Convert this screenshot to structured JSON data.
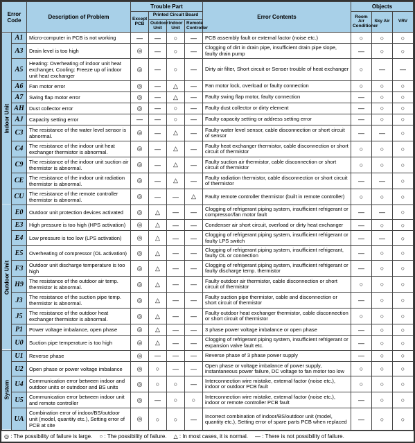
{
  "legend": {
    "large": "◎  : The possibility of failure is large.",
    "possible": "○  : The possibility of failure.",
    "normal": "△ : In most cases, it is normal.",
    "none": "—  : There is not possibility of failure."
  },
  "headers": {
    "errorCode": "Error Code",
    "descProblem": "Description of Problem",
    "troublePart": "Trouble Part",
    "exceptPCB": "Except PCB",
    "pcb": "Printed Circuit Board",
    "outdoorUnit": "Outdoor Unit",
    "indoorUnit": "Indoor Unit",
    "remoteController": "Remote Controller",
    "errorContents": "Error Contents",
    "objects": "Objects",
    "roomAC": "Room Air Conditioner",
    "skyAir": "Sky Air",
    "vrv": "VRV"
  },
  "groups": [
    {
      "label": "Indoor Unit",
      "rows": [
        {
          "code": "A1",
          "desc": "Micro-computer in PCB is not working",
          "s": [
            "—",
            "—",
            "○",
            "—"
          ],
          "contents": "PCB assembly fault or external factor (noise etc.)",
          "o": [
            "○",
            "○",
            "○"
          ]
        },
        {
          "code": "A3",
          "desc": "Drain level is too high",
          "s": [
            "◎",
            "—",
            "○",
            "—"
          ],
          "contents": "Clogging of dirt in drain pipe, insufficient drain pipe slope, faulty drain pump",
          "o": [
            "—",
            "○",
            "○"
          ]
        },
        {
          "code": "A5",
          "desc": "Heating: Overheating of indoor unit heat exchanger, Cooling: Freeze up of indoor unit heat exchanger",
          "s": [
            "◎",
            "—",
            "○",
            "—"
          ],
          "contents": "Dirty air filter, Short circuit or Senser trouble of heat exchanger",
          "o": [
            "○",
            "—",
            "—"
          ]
        },
        {
          "code": "A6",
          "desc": "Fan motor error",
          "s": [
            "◎",
            "—",
            "△",
            "—"
          ],
          "contents": "Fan motor lock, overload or faulty connection",
          "o": [
            "○",
            "○",
            "○"
          ]
        },
        {
          "code": "A7",
          "desc": "Swing flap motor error",
          "s": [
            "◎",
            "—",
            "△",
            "—"
          ],
          "contents": "Faulty swing flap motor, faulty connection",
          "o": [
            "—",
            "○",
            "○"
          ]
        },
        {
          "code": "AH",
          "desc": "Dust collector error",
          "s": [
            "◎",
            "—",
            "○",
            "—"
          ],
          "contents": "Faulty dust collector or dirty element",
          "o": [
            "—",
            "○",
            "○"
          ]
        },
        {
          "code": "AJ",
          "desc": "Capacity setting error",
          "s": [
            "—",
            "—",
            "○",
            "—"
          ],
          "contents": "Faulty capacity setting or address setting error",
          "o": [
            "—",
            "○",
            "○"
          ]
        },
        {
          "code": "C3",
          "desc": "The resistance of the water level sensor is abnormal.",
          "s": [
            "◎",
            "—",
            "△",
            "—"
          ],
          "contents": "Faulty water level sensor, cable disconnection or short circuit of sensor",
          "o": [
            "—",
            "—",
            "○"
          ]
        },
        {
          "code": "C4",
          "desc": "The resistance of the indoor unit heat exchanger thermistor is abnormal.",
          "s": [
            "◎",
            "—",
            "△",
            "—"
          ],
          "contents": "Faulty heat exchanger thermistor, cable disconnection or short circuit of thermistor",
          "o": [
            "○",
            "○",
            "○"
          ]
        },
        {
          "code": "C9",
          "desc": "The resistance of the indoor unit suction air thermistor is abnormal.",
          "s": [
            "◎",
            "—",
            "△",
            "—"
          ],
          "contents": "Faulty suction air thermistor, cable disconnection or short circuit of thermistor",
          "o": [
            "○",
            "○",
            "○"
          ]
        },
        {
          "code": "CE",
          "desc": "The resistance of the indoor unit radiation thermistor is abnormal.",
          "s": [
            "◎",
            "—",
            "△",
            "—"
          ],
          "contents": "Faulty radiation thermistor, cable disconnection or short circuit of thermistor",
          "o": [
            "—",
            "—",
            "○"
          ]
        },
        {
          "code": "CU",
          "desc": "The resistance of the remote controller thermistor is abnormal.",
          "s": [
            "◎",
            "—",
            "—",
            "△"
          ],
          "contents": "Faulty remote controller thermistor (built in remote controller)",
          "o": [
            "○",
            "○",
            "○"
          ]
        }
      ]
    },
    {
      "label": "Outdoor Unit",
      "rows": [
        {
          "code": "E0",
          "desc": "Outdoor unit protection devices activated",
          "s": [
            "◎",
            "△",
            "—",
            "—"
          ],
          "contents": "Clogging of refrigerant piping system, insufficient refrigerant or compressor/fan motor fault",
          "o": [
            "—",
            "—",
            "○"
          ]
        },
        {
          "code": "E3",
          "desc": "High pressure is too high (HPS activation)",
          "s": [
            "◎",
            "△",
            "—",
            "—"
          ],
          "contents": "Condenser air short circuit, overload or dirty heat exchanger",
          "o": [
            "—",
            "○",
            "○"
          ]
        },
        {
          "code": "E4",
          "desc": "Low pressure is too low (LPS activation)",
          "s": [
            "◎",
            "△",
            "—",
            "—"
          ],
          "contents": "Clogging of refrigerant piping system, insufficient refrigerant or faulty LPS switch",
          "o": [
            "—",
            "—",
            "○"
          ]
        },
        {
          "code": "E5",
          "desc": "Overheating of compressor (OL activation)",
          "s": [
            "◎",
            "△",
            "—",
            "—"
          ],
          "contents": "Clogging of refrigerant piping system, insufficient refrigerant, faulty OL or connection",
          "o": [
            "—",
            "○",
            "○"
          ]
        },
        {
          "code": "F3",
          "desc": "Outdoor unit discharge temperature is too high",
          "s": [
            "◎",
            "△",
            "—",
            "—"
          ],
          "contents": "Clogging of refrigerant piping system, insufficient refrigerant or faulty discharge temp. thermistor",
          "o": [
            "—",
            "○",
            "○"
          ]
        },
        {
          "code": "H9",
          "desc": "The resistance of the outdoor air temp. thermistor is abnormal.",
          "s": [
            "◎",
            "△",
            "—",
            "—"
          ],
          "contents": "Faulty outdoor air thermistor, cable disconnection or short circuit of thermistor",
          "o": [
            "○",
            "○",
            "○"
          ]
        },
        {
          "code": "J3",
          "desc": "The resistance of the suction pipe temp. thermistor is abnormal.",
          "s": [
            "◎",
            "△",
            "—",
            "—"
          ],
          "contents": "Faulty suction pipe thermistor, cable and disconnection or short circuit of thermistor",
          "o": [
            "—",
            "○",
            "○"
          ]
        },
        {
          "code": "J5",
          "desc": "The resistance of the outdoor heat exchanger thermistor is abnormal.",
          "s": [
            "◎",
            "△",
            "—",
            "—"
          ],
          "contents": "Faulty outdoor heat exchanger thermistor, cable disconnection or short circuit of thermistor",
          "o": [
            "○",
            "○",
            "○"
          ]
        },
        {
          "code": "P1",
          "desc": "Power voltage imbalance, open phase",
          "s": [
            "◎",
            "△",
            "—",
            "—"
          ],
          "contents": "3 phase power voltage imbalance or open phase",
          "o": [
            "—",
            "○",
            "○"
          ]
        },
        {
          "code": "U0",
          "desc": "Suction pipe temperature is too high",
          "s": [
            "◎",
            "△",
            "—",
            "—"
          ],
          "contents": "Clogging of refrigerant piping system, insufficient refrigerant or expansion valve fault etc.",
          "o": [
            "—",
            "○",
            "○"
          ]
        }
      ]
    },
    {
      "label": "System",
      "rows": [
        {
          "code": "U1",
          "desc": "Reverse phase",
          "s": [
            "◎",
            "—",
            "—",
            "—"
          ],
          "contents": "Reverse phase of 3 phase power supply",
          "o": [
            "—",
            "○",
            "○"
          ]
        },
        {
          "code": "U2",
          "desc": "Open phase or power voltage imbalance",
          "s": [
            "◎",
            "○",
            "—",
            "—"
          ],
          "contents": "Open phase or voltage imbalance of power supply, instantaneous power failure, DC voltage to fan motor too low",
          "o": [
            "○",
            "○",
            "○"
          ]
        },
        {
          "code": "U4",
          "desc": "Communication error between indoor and outdoor units or outndoor and BS units",
          "s": [
            "◎",
            "○",
            "○",
            "—"
          ],
          "contents": "Interconnection wire mistake, external factor (noise etc.), indoor or outdoor PCB fault",
          "o": [
            "○",
            "○",
            "○"
          ]
        },
        {
          "code": "U5",
          "desc": "Communication error between indoor unit and remote controller",
          "s": [
            "◎",
            "—",
            "○",
            "○"
          ],
          "contents": "Interconnection wire mistake, external factor (noise etc.), indoor or remote controller PCB fault",
          "o": [
            "—",
            "○",
            "○"
          ]
        },
        {
          "code": "UA",
          "desc": "Combination error of indoor/BS/outdoor unit (model, quantity etc.), Setting error of PCB at site",
          "s": [
            "◎",
            "○",
            "○",
            "—"
          ],
          "contents": "Incorrect combination of indoor/BS/outdoor unit (model, quantity etc.), Setting error of spare parts PCB when replaced",
          "o": [
            "—",
            "○",
            "○"
          ]
        }
      ]
    }
  ]
}
